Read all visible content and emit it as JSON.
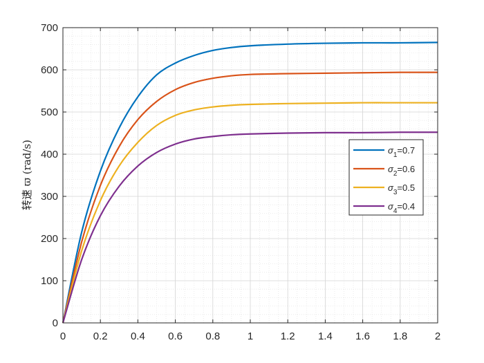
{
  "chart_data": {
    "type": "line",
    "title": "",
    "xlabel": "",
    "ylabel": "转速 ϖ (rad/s)",
    "xlim": [
      0,
      2
    ],
    "ylim": [
      0,
      700
    ],
    "xticks": [
      0,
      0.2,
      0.4,
      0.6,
      0.8,
      1,
      1.2,
      1.4,
      1.6,
      1.8,
      2
    ],
    "xtick_labels": [
      "0",
      "0.2",
      "0.4",
      "0.6",
      "0.8",
      "1",
      "1.2",
      "1.4",
      "1.6",
      "1.8",
      "2"
    ],
    "yticks": [
      0,
      100,
      200,
      300,
      400,
      500,
      600,
      700
    ],
    "ytick_labels": [
      "0",
      "100",
      "200",
      "300",
      "400",
      "500",
      "600",
      "700"
    ],
    "grid": "major-and-minor",
    "legend_position": "center-right",
    "x": [
      0,
      0.1,
      0.2,
      0.3,
      0.4,
      0.5,
      0.6,
      0.7,
      0.8,
      0.9,
      1.0,
      1.2,
      1.4,
      1.6,
      1.8,
      2.0
    ],
    "series": [
      {
        "name": "σ1=0.7",
        "legend": {
          "sym": "σ",
          "sub": "1",
          "val": "=0.7"
        },
        "color": "#0072BD",
        "values": [
          0,
          215,
          360,
          462,
          536,
          588,
          616,
          634,
          646,
          653,
          657,
          661,
          663,
          664,
          664,
          665
        ]
      },
      {
        "name": "σ2=0.6",
        "legend": {
          "sym": "σ",
          "sub": "2",
          "val": "=0.6"
        },
        "color": "#D95319",
        "values": [
          0,
          192,
          326,
          418,
          482,
          525,
          553,
          570,
          580,
          586,
          589,
          591,
          592,
          593,
          594,
          594
        ]
      },
      {
        "name": "σ3=0.5",
        "legend": {
          "sym": "σ",
          "sub": "3",
          "val": "=0.5"
        },
        "color": "#EDB120",
        "values": [
          0,
          171,
          290,
          372,
          428,
          468,
          492,
          505,
          512,
          516,
          518,
          520,
          521,
          522,
          522,
          522
        ]
      },
      {
        "name": "σ4=0.4",
        "legend": {
          "sym": "σ",
          "sub": "4",
          "val": "=0.4"
        },
        "color": "#7E2F8E",
        "values": [
          0,
          150,
          254,
          324,
          372,
          404,
          424,
          436,
          442,
          446,
          448,
          450,
          451,
          451,
          452,
          452
        ]
      }
    ]
  }
}
